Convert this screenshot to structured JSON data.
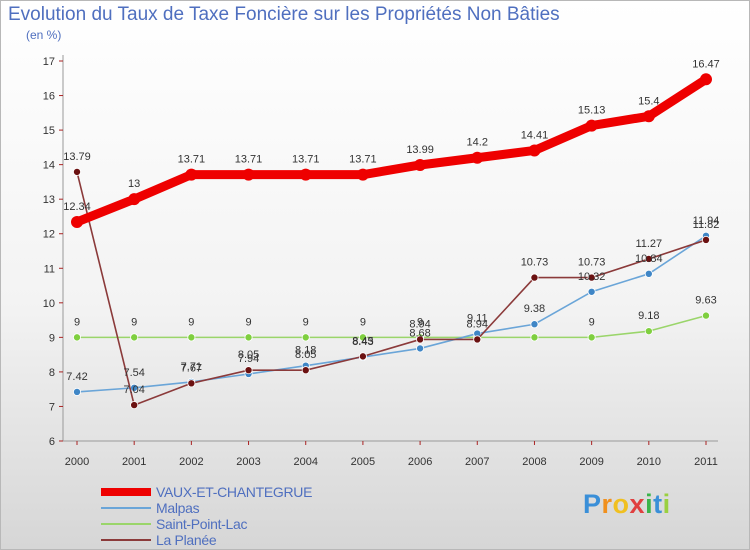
{
  "chart_data": {
    "type": "line",
    "title": "Evolution du Taux de Taxe Foncière sur les Propriétés Non Bâties",
    "unit_label": "(en %)",
    "x": [
      "2000",
      "2001",
      "2002",
      "2003",
      "2004",
      "2005",
      "2006",
      "2007",
      "2008",
      "2009",
      "2010",
      "2011"
    ],
    "ylim": [
      6,
      17
    ],
    "yticks": [
      6,
      7,
      8,
      9,
      10,
      11,
      12,
      13,
      14,
      15,
      16,
      17
    ],
    "grid": false,
    "legend_position": "bottom-left",
    "series": [
      {
        "name": "VAUX-ET-CHANTEGRUE",
        "color": "#ee0000",
        "marker_color": "#ee0000",
        "values": [
          12.34,
          13,
          13.71,
          13.71,
          13.71,
          13.71,
          13.99,
          14.2,
          14.41,
          15.13,
          15.4,
          16.47
        ],
        "labels": [
          "12.34",
          "13",
          "13.71",
          "13.71",
          "13.71",
          "13.71",
          "13.99",
          "14.2",
          "14.41",
          "15.13",
          "15.4",
          "16.47"
        ]
      },
      {
        "name": "Malpas",
        "color": "#6aa5d8",
        "marker_color": "#3f86c6",
        "values": [
          7.42,
          7.54,
          7.71,
          7.94,
          8.18,
          8.43,
          8.68,
          9.11,
          9.38,
          10.32,
          10.84,
          11.94
        ],
        "labels": [
          "7.42",
          "7.54",
          "7.71",
          "7.94",
          "8.18",
          "8.43",
          "8.68",
          "9.11",
          "9.38",
          "10.32",
          "10.84",
          "11.94"
        ]
      },
      {
        "name": "Saint-Point-Lac",
        "color": "#9ad56a",
        "marker_color": "#7fcf3f",
        "values": [
          9,
          9,
          9,
          9,
          9,
          9,
          9,
          9,
          9,
          9,
          9.18,
          9.63
        ],
        "labels": [
          "9",
          "9",
          "9",
          "9",
          "9",
          "9",
          "9",
          "",
          "",
          "9",
          "9.18",
          "9.63"
        ]
      },
      {
        "name": "La Planée",
        "color": "#8b3a3a",
        "marker_color": "#6b1111",
        "values": [
          13.79,
          7.04,
          7.67,
          8.05,
          8.05,
          8.45,
          8.94,
          8.94,
          10.73,
          10.73,
          11.27,
          11.82
        ],
        "labels": [
          "13.79",
          "7.04",
          "7.67",
          "8.05",
          "8.05",
          "8.45",
          "8.94",
          "8.94",
          "10.73",
          "10.73",
          "11.27",
          "11.82"
        ]
      }
    ]
  },
  "logo": {
    "letters": [
      {
        "char": "P",
        "color": "#3a8fd8"
      },
      {
        "char": "r",
        "color": "#f0901e"
      },
      {
        "char": "o",
        "color": "#f0c020"
      },
      {
        "char": "x",
        "color": "#e04040"
      },
      {
        "char": "i",
        "color": "#3ab44a"
      },
      {
        "char": "t",
        "color": "#3a8fd8"
      },
      {
        "char": "i",
        "color": "#9ad040"
      }
    ]
  }
}
